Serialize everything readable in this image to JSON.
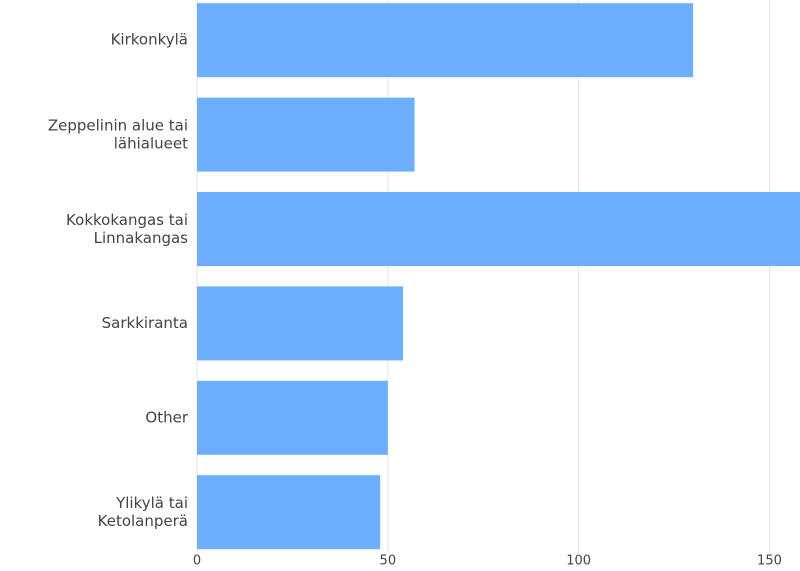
{
  "chart_data": {
    "type": "bar",
    "orientation": "horizontal",
    "categories": [
      "Kirkonkylä",
      "Zeppelinin alue tai\nlähialueet",
      "Kokkokangas tai\nLinnakangas",
      "Sarkkiranta",
      "Other",
      "Ylikylä tai\nKetolanperä"
    ],
    "values": [
      130,
      57,
      160,
      54,
      50,
      48
    ],
    "color": "#6daeff",
    "xlim": [
      0,
      158
    ],
    "xticks": [
      0,
      50,
      100,
      150
    ],
    "grid": true
  }
}
